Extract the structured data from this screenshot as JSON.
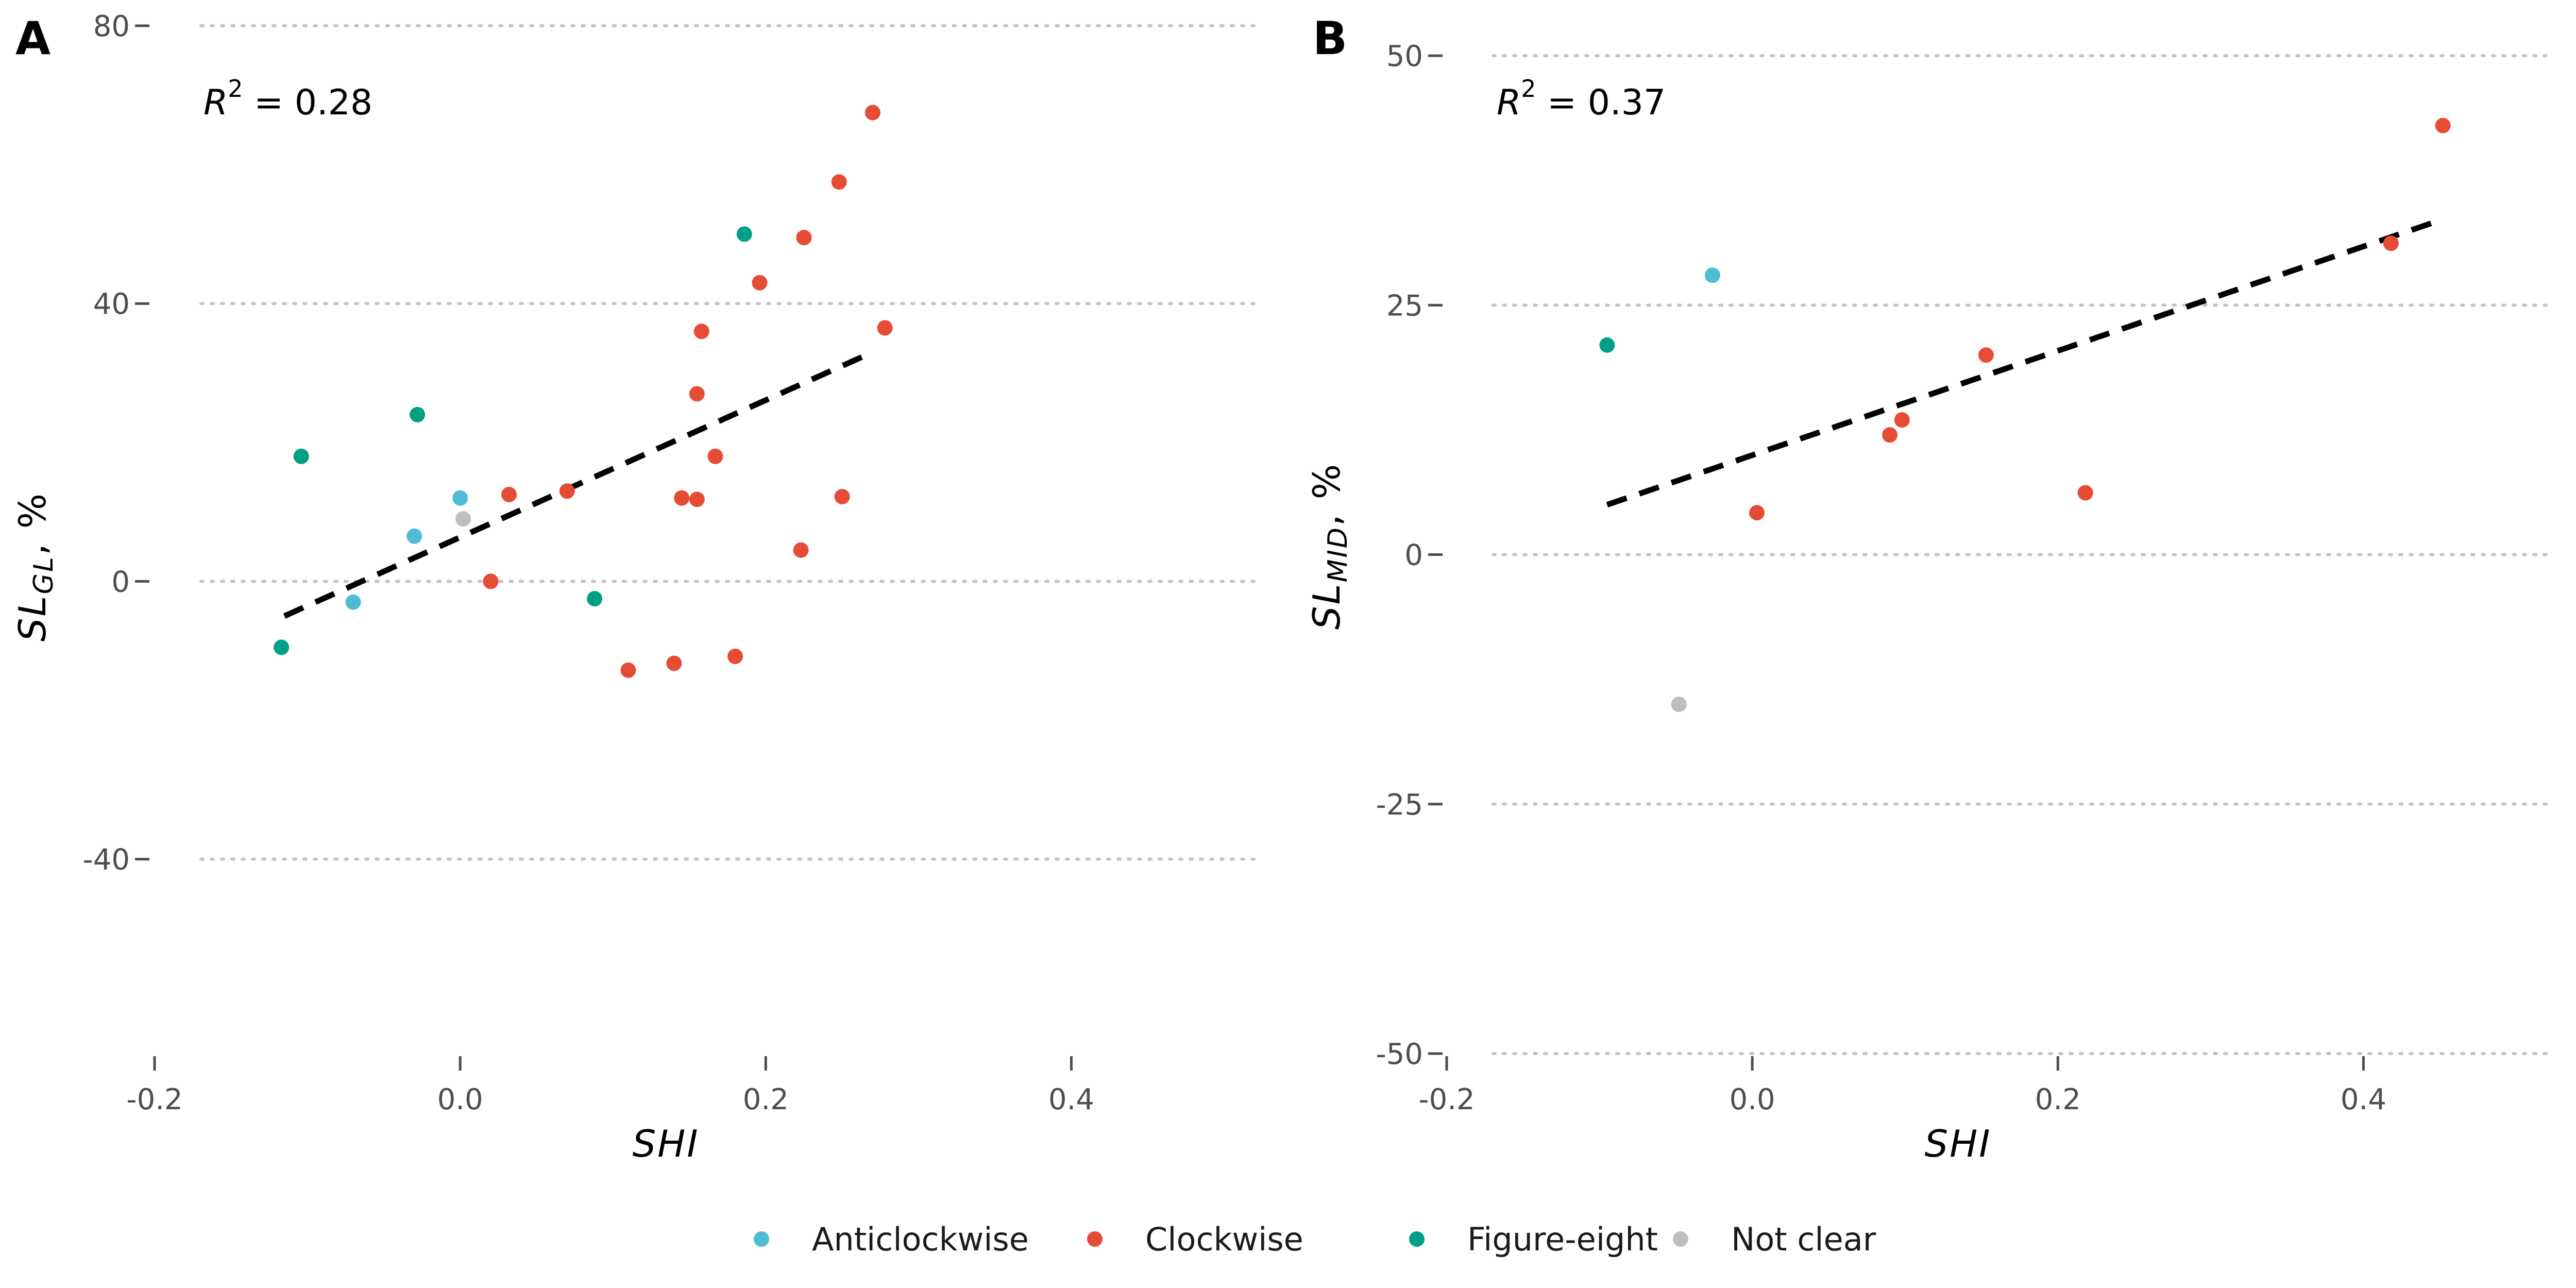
{
  "chart_data": [
    {
      "type": "scatter",
      "panel_label": "A",
      "xlabel": "SHI",
      "ylabel_main": "SL",
      "ylabel_sub": "GL",
      "ylabel_suffix": ", %",
      "r2_prefix": "R",
      "r2_exp": "2",
      "r2_value": " = 0.28",
      "xlim": [
        -0.2,
        0.53
      ],
      "ylim": [
        -68,
        80
      ],
      "xticks": [
        -0.2,
        0.0,
        0.2,
        0.4
      ],
      "xtick_labels": [
        "-0.2",
        "0.0",
        "0.2",
        "0.4"
      ],
      "yticks": [
        -40,
        0,
        40,
        80
      ],
      "ytick_labels": [
        "-40",
        "0",
        "40",
        "80"
      ],
      "grid": "horizontal dotted",
      "fit_line": {
        "x": [
          -0.115,
          0.27
        ],
        "y": [
          -5,
          33
        ]
      },
      "series": [
        {
          "name": "Anticlockwise",
          "x": [
            -0.07,
            -0.03,
            0.0
          ],
          "y": [
            -3,
            6.5,
            12
          ]
        },
        {
          "name": "Clockwise",
          "x": [
            0.02,
            0.032,
            0.07,
            0.11,
            0.14,
            0.145,
            0.155,
            0.155,
            0.158,
            0.167,
            0.18,
            0.196,
            0.223,
            0.225,
            0.248,
            0.25,
            0.27,
            0.278
          ],
          "y": [
            0,
            12.5,
            13,
            -12.8,
            -11.8,
            12,
            11.8,
            27,
            36,
            18,
            -10.8,
            43,
            4.5,
            49.5,
            57.5,
            12.2,
            67.5,
            36.5
          ]
        },
        {
          "name": "Figure-eight",
          "x": [
            -0.117,
            -0.104,
            -0.028,
            0.088,
            0.186
          ],
          "y": [
            -9.5,
            18,
            24,
            -2.5,
            50
          ]
        },
        {
          "name": "Not clear",
          "x": [
            0.002
          ],
          "y": [
            9
          ]
        }
      ]
    },
    {
      "type": "scatter",
      "panel_label": "B",
      "xlabel": "SHI",
      "ylabel_main": "SL",
      "ylabel_sub": "MID",
      "ylabel_suffix": ", %",
      "r2_prefix": "R",
      "r2_exp": "2",
      "r2_value": " = 0.37",
      "xlim": [
        -0.2,
        0.53
      ],
      "ylim": [
        -50,
        53
      ],
      "xticks": [
        -0.2,
        0.0,
        0.2,
        0.4
      ],
      "xtick_labels": [
        "-0.2",
        "0.0",
        "0.2",
        "0.4"
      ],
      "yticks": [
        -50,
        -25,
        0,
        25,
        50
      ],
      "ytick_labels": [
        "-50",
        "-25",
        "0",
        "25",
        "50"
      ],
      "grid": "horizontal dotted",
      "fit_line": {
        "x": [
          -0.095,
          0.45
        ],
        "y": [
          5,
          33.5
        ]
      },
      "series": [
        {
          "name": "Anticlockwise",
          "x": [
            -0.026
          ],
          "y": [
            28
          ]
        },
        {
          "name": "Clockwise",
          "x": [
            0.003,
            0.09,
            0.098,
            0.153,
            0.218,
            0.418,
            0.452
          ],
          "y": [
            4.2,
            12,
            13.5,
            20,
            6.2,
            31.2,
            43
          ]
        },
        {
          "name": "Figure-eight",
          "x": [
            -0.095
          ],
          "y": [
            21
          ]
        },
        {
          "name": "Not clear",
          "x": [
            -0.048
          ],
          "y": [
            -15
          ]
        }
      ]
    }
  ],
  "legend": {
    "placement": "bottom",
    "items": [
      {
        "label": "Anticlockwise",
        "color": "#4EBCD5"
      },
      {
        "label": "Clockwise",
        "color": "#E64B35"
      },
      {
        "label": "Figure-eight",
        "color": "#00A087"
      },
      {
        "label": "Not clear",
        "color": "#BEBEBE"
      }
    ]
  },
  "colors": {
    "Anticlockwise": "#4EBCD5",
    "Clockwise": "#E64B35",
    "Figure-eight": "#00A087",
    "Not clear": "#BEBEBE",
    "fit_line": "#000000",
    "grid": "#C4C4C4"
  }
}
